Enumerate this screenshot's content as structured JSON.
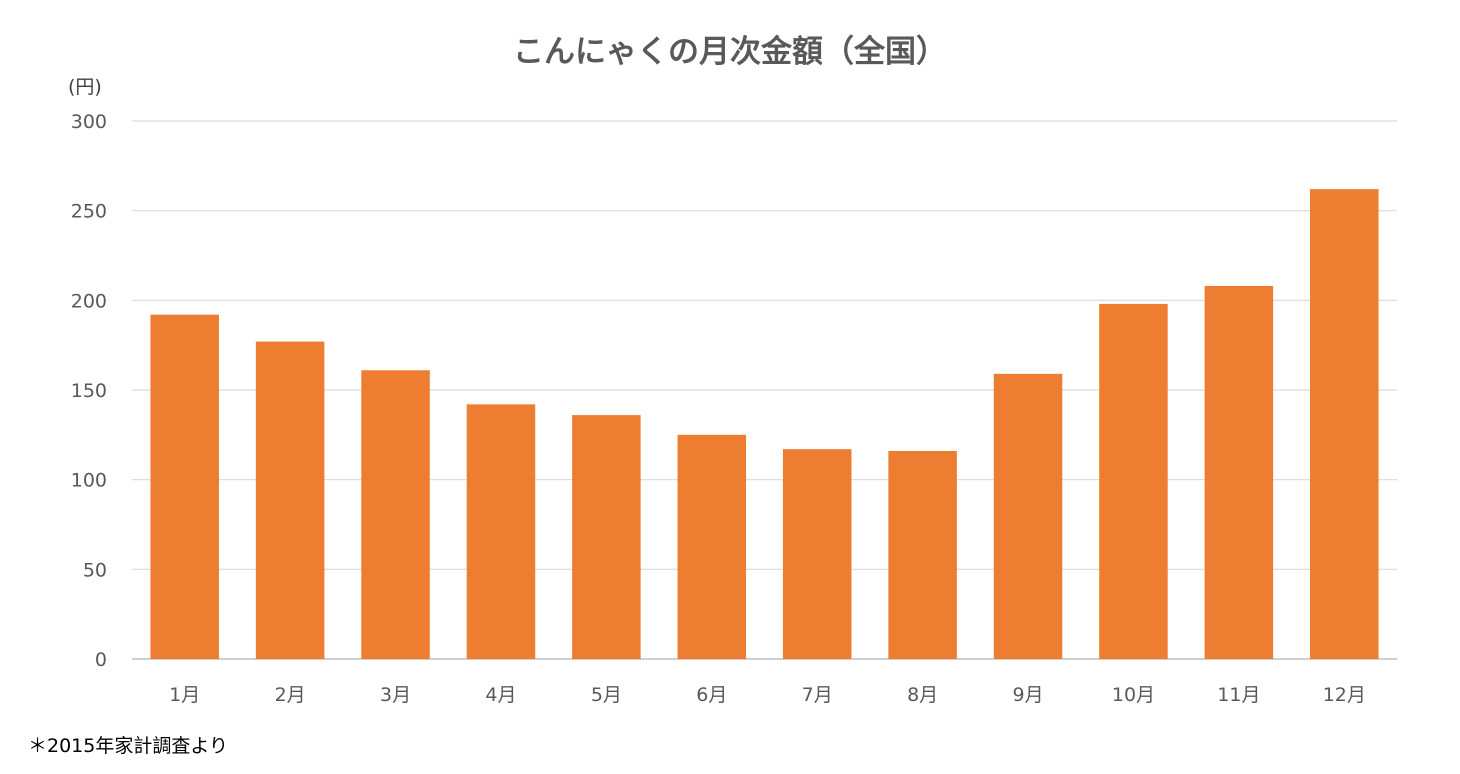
{
  "chart_data": {
    "type": "bar",
    "title": "こんにゃくの月次金額（全国）",
    "ylabel": "(円)",
    "xlabel": "",
    "categories": [
      "1月",
      "2月",
      "3月",
      "4月",
      "5月",
      "6月",
      "7月",
      "8月",
      "9月",
      "10月",
      "11月",
      "12月"
    ],
    "values": [
      192,
      177,
      161,
      142,
      136,
      125,
      117,
      116,
      159,
      198,
      208,
      262
    ],
    "yticks": [
      "0",
      "50",
      "100",
      "150",
      "200",
      "250",
      "300"
    ],
    "ylim": [
      0,
      300
    ],
    "grid": true,
    "bar_color": "#ED7D31",
    "footnote": "＊2015年家計調査より"
  }
}
